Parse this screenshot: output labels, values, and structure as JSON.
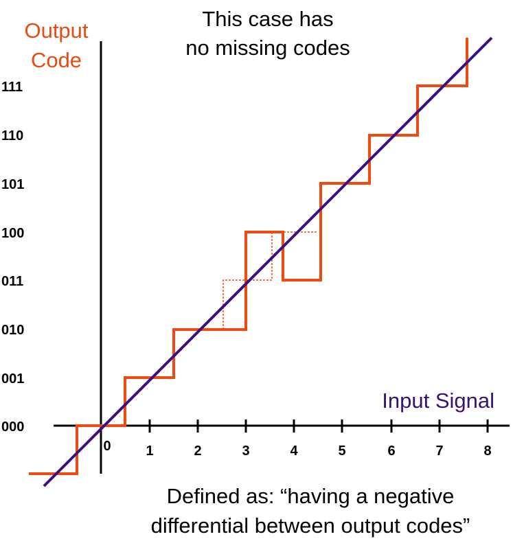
{
  "title": [
    "This case has",
    "no missing codes"
  ],
  "y_axis_label": [
    "Output",
    "Code"
  ],
  "x_axis_label": "Input Signal",
  "y_ticks": [
    "000",
    "001",
    "010",
    "011",
    "100",
    "101",
    "110",
    "111"
  ],
  "x_ticks": [
    "0",
    "1",
    "2",
    "3",
    "4",
    "5",
    "6",
    "7",
    "8"
  ],
  "caption": [
    "Defined as:  “having a negative",
    "differential between output codes”"
  ]
}
